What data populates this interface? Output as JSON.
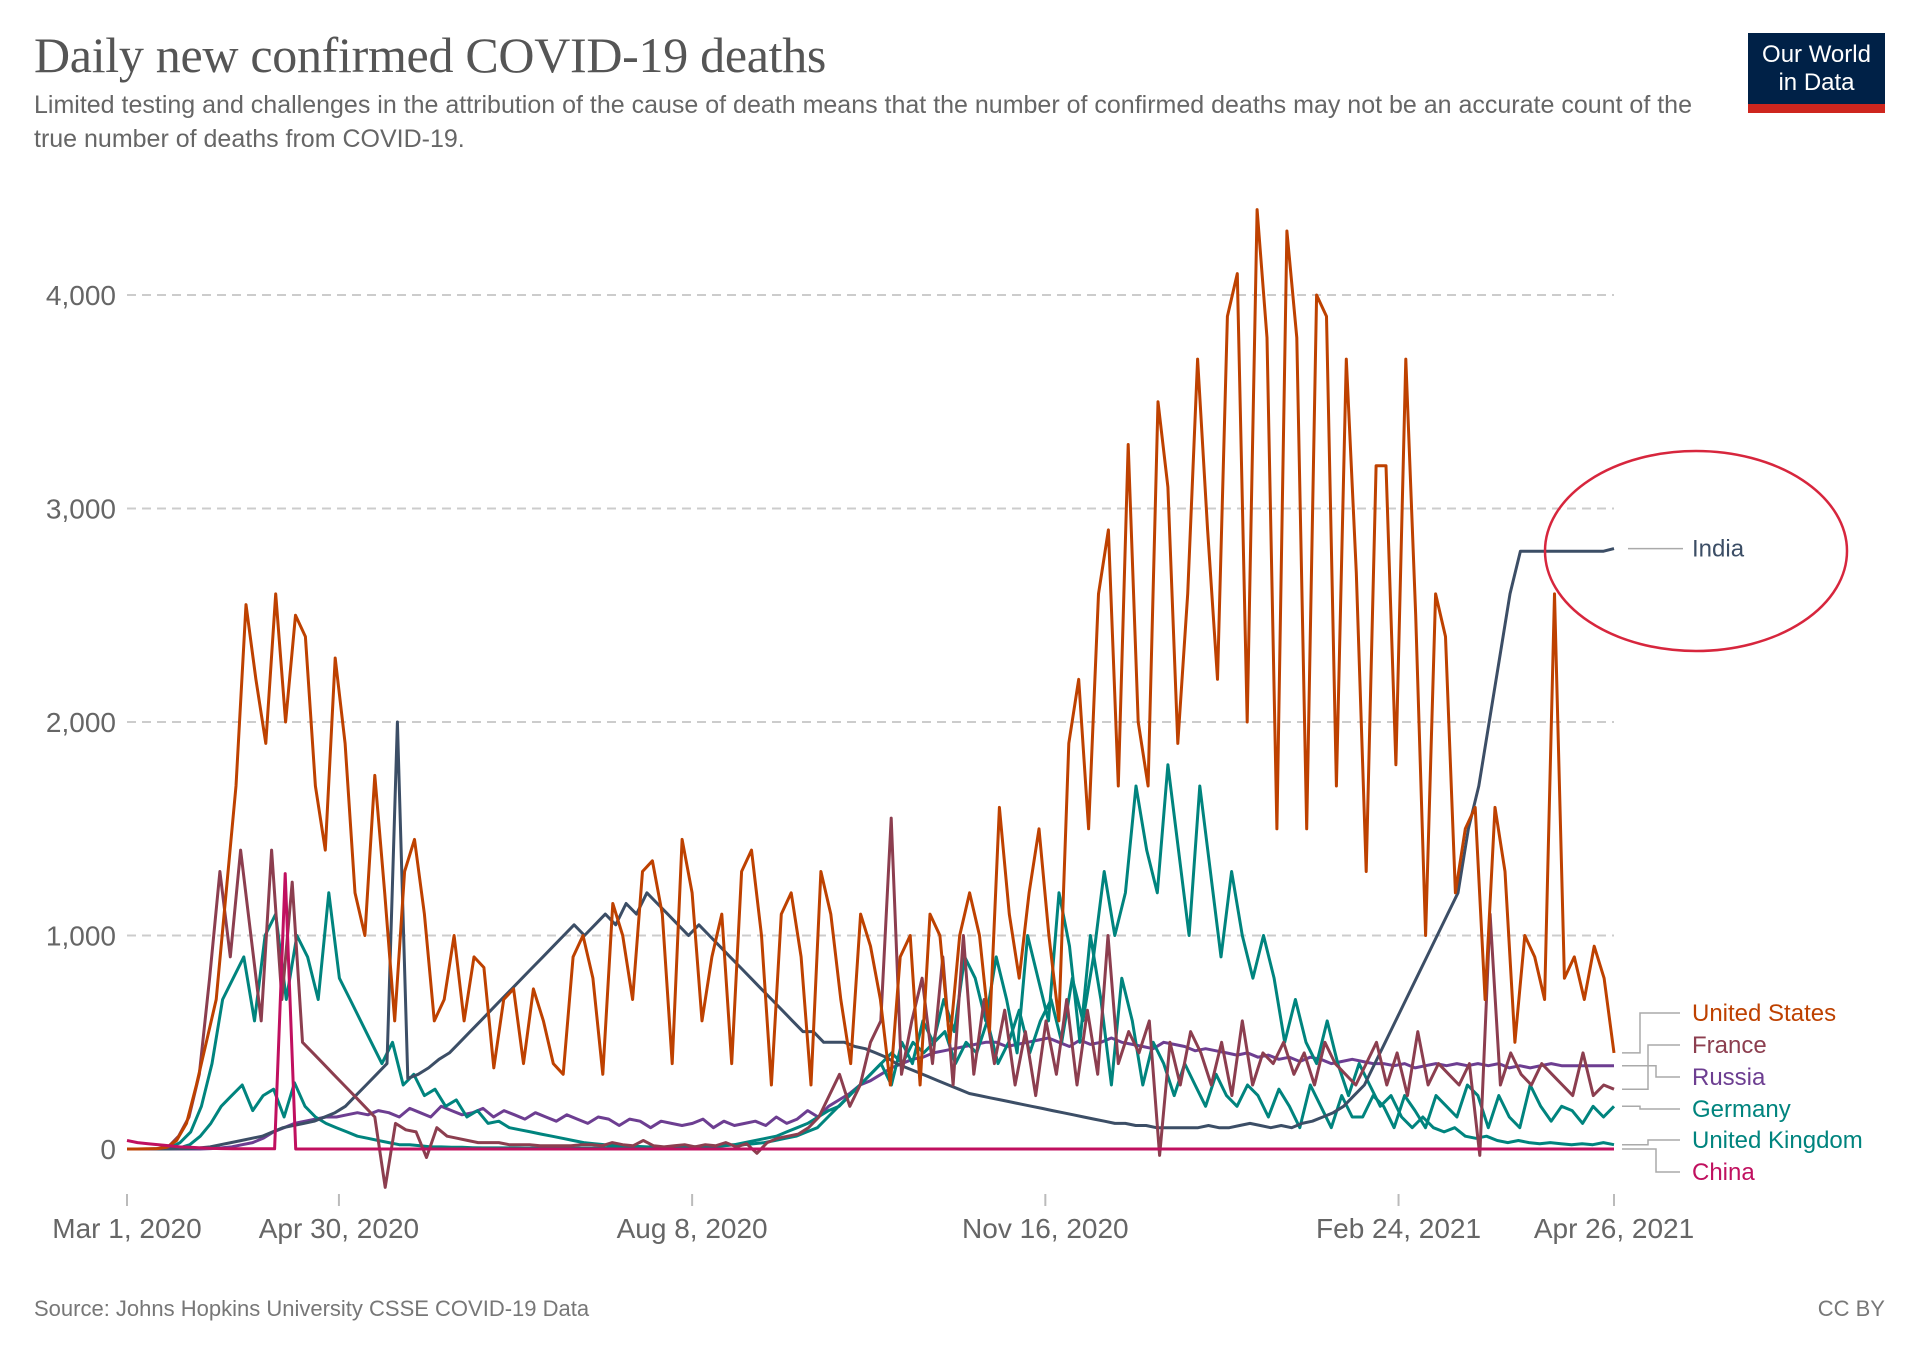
{
  "header": {
    "title": "Daily new confirmed COVID-19 deaths",
    "subtitle": "Limited testing and challenges in the attribution of the cause of death means that the number of confirmed deaths may not be an accurate count of the true number of deaths from COVID-19.",
    "logo_line1": "Our World",
    "logo_line2": "in Data"
  },
  "footer": {
    "source": "Source: Johns Hopkins University CSSE COVID-19 Data",
    "license": "CC BY"
  },
  "annotation": {
    "highlight": "India",
    "ellipse_color": "#d7263d"
  },
  "chart_data": {
    "type": "line",
    "title": "Daily new confirmed COVID-19 deaths",
    "xlabel": "",
    "ylabel": "",
    "x_start": "2020-03-01",
    "x_end": "2021-04-26",
    "x_step_days": 3,
    "ylim": [
      0,
      4500
    ],
    "yticks": [
      0,
      1000,
      2000,
      3000,
      4000
    ],
    "ytick_labels": [
      "0",
      "1,000",
      "2,000",
      "3,000",
      "4,000"
    ],
    "xtick_days": [
      0,
      60,
      160,
      260,
      360,
      421
    ],
    "xtick_labels": [
      "Mar 1, 2020",
      "Apr 30, 2020",
      "Aug 8, 2020",
      "Nov 16, 2020",
      "Feb 24, 2021",
      "Apr 26, 2021"
    ],
    "grid": "horizontal-dashed",
    "legend": "right",
    "series": [
      {
        "name": "United States",
        "color": "#be4100",
        "label_slot": 0,
        "values": [
          0,
          0,
          1,
          2,
          8,
          40,
          120,
          300,
          500,
          700,
          1200,
          1700,
          2550,
          2200,
          1900,
          2600,
          2000,
          2500,
          2400,
          1700,
          1400,
          2300,
          1900,
          1200,
          1000,
          1750,
          1200,
          600,
          1300,
          1450,
          1100,
          600,
          700,
          1000,
          600,
          900,
          850,
          380,
          700,
          750,
          400,
          750,
          600,
          400,
          350,
          900,
          1000,
          800,
          350,
          1150,
          1000,
          700,
          1300,
          1350,
          1100,
          400,
          1450,
          1200,
          600,
          900,
          1100,
          400,
          1300,
          1400,
          1000,
          300,
          1100,
          1200,
          900,
          300,
          1300,
          1100,
          700,
          400,
          1100,
          950,
          700,
          300,
          900,
          1000,
          300,
          1100,
          1000,
          500,
          1000,
          1200,
          1000,
          550,
          1600,
          1100,
          800,
          1200,
          1500,
          1000,
          600,
          1900,
          2200,
          1500,
          2600,
          2900,
          1700,
          3300,
          2000,
          1700,
          3500,
          3100,
          1900,
          2600,
          3700,
          2900,
          2200,
          3900,
          4100,
          2000,
          4400,
          3800,
          1500,
          4300,
          3800,
          1500,
          4000,
          3900,
          1700,
          3700,
          2700,
          1300,
          3200,
          3200,
          1800,
          3700,
          2500,
          1000,
          2600,
          2400,
          1200,
          1500,
          1600,
          700,
          1600,
          1300,
          500,
          1000,
          900,
          700,
          2600,
          800,
          900,
          700,
          950,
          800,
          450
        ],
        "last": 480
      },
      {
        "name": "France",
        "color": "#8c3e4f",
        "label_slot": 1,
        "values": [
          0,
          0,
          0,
          2,
          10,
          60,
          150,
          350,
          800,
          1300,
          900,
          1400,
          1000,
          600,
          1400,
          700,
          1250,
          500,
          450,
          400,
          350,
          300,
          250,
          200,
          150,
          -180,
          120,
          90,
          80,
          -40,
          100,
          60,
          50,
          40,
          30,
          30,
          30,
          20,
          20,
          20,
          15,
          15,
          15,
          15,
          20,
          20,
          15,
          30,
          20,
          15,
          40,
          15,
          10,
          15,
          20,
          10,
          20,
          15,
          30,
          10,
          25,
          -20,
          30,
          50,
          60,
          70,
          100,
          150,
          250,
          350,
          200,
          300,
          500,
          600,
          1550,
          350,
          600,
          800,
          400,
          900,
          300,
          1000,
          350,
          700,
          400,
          650,
          300,
          550,
          250,
          600,
          350,
          700,
          300,
          650,
          350,
          1000,
          400,
          550,
          450,
          600,
          -30,
          500,
          300,
          550,
          450,
          300,
          500,
          250,
          600,
          300,
          450,
          400,
          500,
          350,
          450,
          300,
          500,
          400,
          350,
          300,
          400,
          500,
          300,
          450,
          250,
          550,
          300,
          400,
          350,
          300,
          400,
          -30,
          1100,
          300,
          450,
          350,
          300,
          400,
          350,
          300,
          250,
          450,
          250,
          300,
          280
        ],
        "last": 300
      },
      {
        "name": "Russia",
        "color": "#6d3e91",
        "label_slot": 2,
        "values": [
          0,
          0,
          0,
          0,
          0,
          0,
          0,
          0,
          2,
          5,
          10,
          20,
          30,
          50,
          80,
          100,
          120,
          130,
          140,
          150,
          150,
          160,
          170,
          160,
          180,
          170,
          150,
          190,
          170,
          150,
          200,
          180,
          160,
          170,
          190,
          150,
          180,
          160,
          140,
          170,
          150,
          130,
          160,
          140,
          120,
          150,
          140,
          110,
          140,
          130,
          100,
          130,
          120,
          110,
          120,
          140,
          100,
          130,
          110,
          120,
          130,
          110,
          150,
          120,
          140,
          180,
          150,
          200,
          230,
          260,
          300,
          320,
          350,
          380,
          400,
          420,
          430,
          450,
          460,
          470,
          480,
          490,
          500,
          500,
          480,
          490,
          500,
          510,
          520,
          500,
          480,
          510,
          490,
          500,
          520,
          500,
          490,
          480,
          470,
          500,
          490,
          480,
          460,
          470,
          460,
          450,
          440,
          450,
          430,
          440,
          420,
          430,
          410,
          430,
          420,
          400,
          410,
          420,
          410,
          400,
          400,
          390,
          400,
          380,
          390,
          400,
          390,
          400,
          390,
          400,
          390,
          400,
          380,
          390,
          380,
          390,
          400,
          390,
          390,
          390,
          390,
          390,
          390
        ],
        "last": 390
      },
      {
        "name": "Germany",
        "color": "#00847e",
        "label_slot": 3,
        "values": [
          0,
          0,
          0,
          0,
          1,
          5,
          20,
          60,
          120,
          200,
          250,
          300,
          180,
          250,
          280,
          150,
          310,
          200,
          150,
          120,
          100,
          80,
          60,
          50,
          40,
          30,
          20,
          20,
          15,
          10,
          10,
          8,
          8,
          6,
          5,
          5,
          5,
          5,
          4,
          4,
          4,
          4,
          3,
          4,
          4,
          4,
          5,
          5,
          6,
          5,
          6,
          5,
          8,
          7,
          10,
          10,
          12,
          15,
          20,
          30,
          40,
          50,
          60,
          80,
          100,
          120,
          150,
          180,
          200,
          250,
          300,
          350,
          400,
          300,
          500,
          400,
          600,
          500,
          700,
          550,
          900,
          800,
          600,
          900,
          700,
          450,
          1000,
          800,
          600,
          1200,
          950,
          500,
          1000,
          700,
          300,
          800,
          600,
          300,
          500,
          400,
          250,
          400,
          300,
          200,
          350,
          250,
          200,
          300,
          250,
          150,
          280,
          200,
          100,
          300,
          200,
          100,
          250,
          150,
          150,
          250,
          200,
          100,
          250,
          180,
          100,
          250,
          200,
          150,
          300,
          250,
          100,
          250,
          150,
          100,
          300,
          200,
          130,
          200,
          180,
          120,
          200,
          150,
          200
        ],
        "last": 200
      },
      {
        "name": "United Kingdom",
        "color": "#00847e",
        "label_slot": 4,
        "values": [
          0,
          0,
          0,
          1,
          5,
          30,
          80,
          200,
          400,
          700,
          800,
          900,
          600,
          1000,
          1100,
          700,
          1000,
          900,
          700,
          1200,
          800,
          700,
          600,
          500,
          400,
          500,
          300,
          350,
          250,
          280,
          200,
          230,
          150,
          180,
          120,
          130,
          100,
          90,
          80,
          70,
          60,
          50,
          40,
          30,
          25,
          20,
          15,
          15,
          12,
          10,
          10,
          8,
          8,
          10,
          10,
          12,
          15,
          20,
          20,
          25,
          30,
          40,
          50,
          60,
          80,
          100,
          150,
          200,
          250,
          300,
          350,
          400,
          450,
          400,
          500,
          450,
          500,
          550,
          400,
          500,
          450,
          600,
          400,
          500,
          650,
          450,
          600,
          700,
          500,
          800,
          600,
          900,
          1300,
          1000,
          1200,
          1700,
          1400,
          1200,
          1800,
          1400,
          1000,
          1700,
          1300,
          900,
          1300,
          1000,
          800,
          1000,
          800,
          500,
          700,
          500,
          400,
          600,
          400,
          250,
          400,
          300,
          200,
          250,
          150,
          100,
          150,
          100,
          80,
          100,
          60,
          50,
          60,
          40,
          30,
          40,
          30,
          25,
          30,
          25,
          20,
          25,
          20,
          30,
          20
        ],
        "last": 20
      },
      {
        "name": "China",
        "color": "#c0105f",
        "label_slot": 5,
        "values": [
          40,
          30,
          25,
          20,
          15,
          10,
          8,
          5,
          3,
          2,
          1,
          1,
          1,
          1,
          1,
          1290,
          0,
          0,
          0,
          0,
          0,
          0,
          0,
          0,
          0,
          0,
          0,
          0,
          0,
          0,
          0,
          0,
          0,
          0,
          0,
          0,
          0,
          0,
          0,
          0,
          0,
          0,
          0,
          0,
          0,
          0,
          0,
          0,
          0,
          0,
          0,
          0,
          0,
          0,
          0,
          0,
          0,
          0,
          0,
          0,
          0,
          0,
          0,
          0,
          0,
          0,
          0,
          0,
          0,
          0,
          0,
          0,
          0,
          0,
          0,
          0,
          0,
          0,
          0,
          0,
          0,
          0,
          0,
          0,
          0,
          0,
          0,
          0,
          0,
          0,
          0,
          0,
          0,
          0,
          0,
          0,
          0,
          0,
          0,
          0,
          0,
          0,
          0,
          0,
          0,
          0,
          0,
          0,
          0,
          0,
          0,
          0,
          0,
          0,
          0,
          0,
          0,
          0,
          0,
          0,
          0,
          0,
          0,
          0,
          0,
          0,
          0,
          0,
          0,
          0,
          0,
          0,
          0,
          0,
          0,
          0,
          0,
          0,
          0,
          0,
          0,
          0
        ],
        "last": 0
      },
      {
        "name": "India",
        "color": "#3c4e66",
        "label_slot": -1,
        "values": [
          0,
          0,
          0,
          0,
          0,
          1,
          2,
          5,
          10,
          20,
          30,
          40,
          50,
          60,
          80,
          100,
          110,
          120,
          130,
          150,
          170,
          200,
          250,
          300,
          350,
          400,
          2000,
          330,
          350,
          380,
          420,
          450,
          500,
          550,
          600,
          650,
          700,
          750,
          800,
          850,
          900,
          950,
          1000,
          1050,
          1000,
          1050,
          1100,
          1050,
          1150,
          1100,
          1200,
          1150,
          1100,
          1050,
          1000,
          1050,
          1000,
          950,
          900,
          850,
          800,
          750,
          700,
          650,
          600,
          550,
          550,
          500,
          500,
          500,
          480,
          470,
          450,
          430,
          400,
          380,
          360,
          340,
          320,
          300,
          280,
          260,
          250,
          240,
          230,
          220,
          210,
          200,
          190,
          180,
          170,
          160,
          150,
          140,
          130,
          120,
          120,
          110,
          110,
          100,
          100,
          100,
          100,
          100,
          110,
          100,
          100,
          110,
          120,
          110,
          100,
          110,
          100,
          120,
          130,
          150,
          170,
          200,
          250,
          300,
          400,
          500,
          600,
          700,
          800,
          900,
          1000,
          1100,
          1200,
          1500,
          1700,
          2000,
          2300,
          2600,
          2800,
          2800,
          2800,
          2800,
          2800,
          2800,
          2800,
          2800,
          2800,
          2812
        ],
        "last": 2812
      }
    ]
  }
}
